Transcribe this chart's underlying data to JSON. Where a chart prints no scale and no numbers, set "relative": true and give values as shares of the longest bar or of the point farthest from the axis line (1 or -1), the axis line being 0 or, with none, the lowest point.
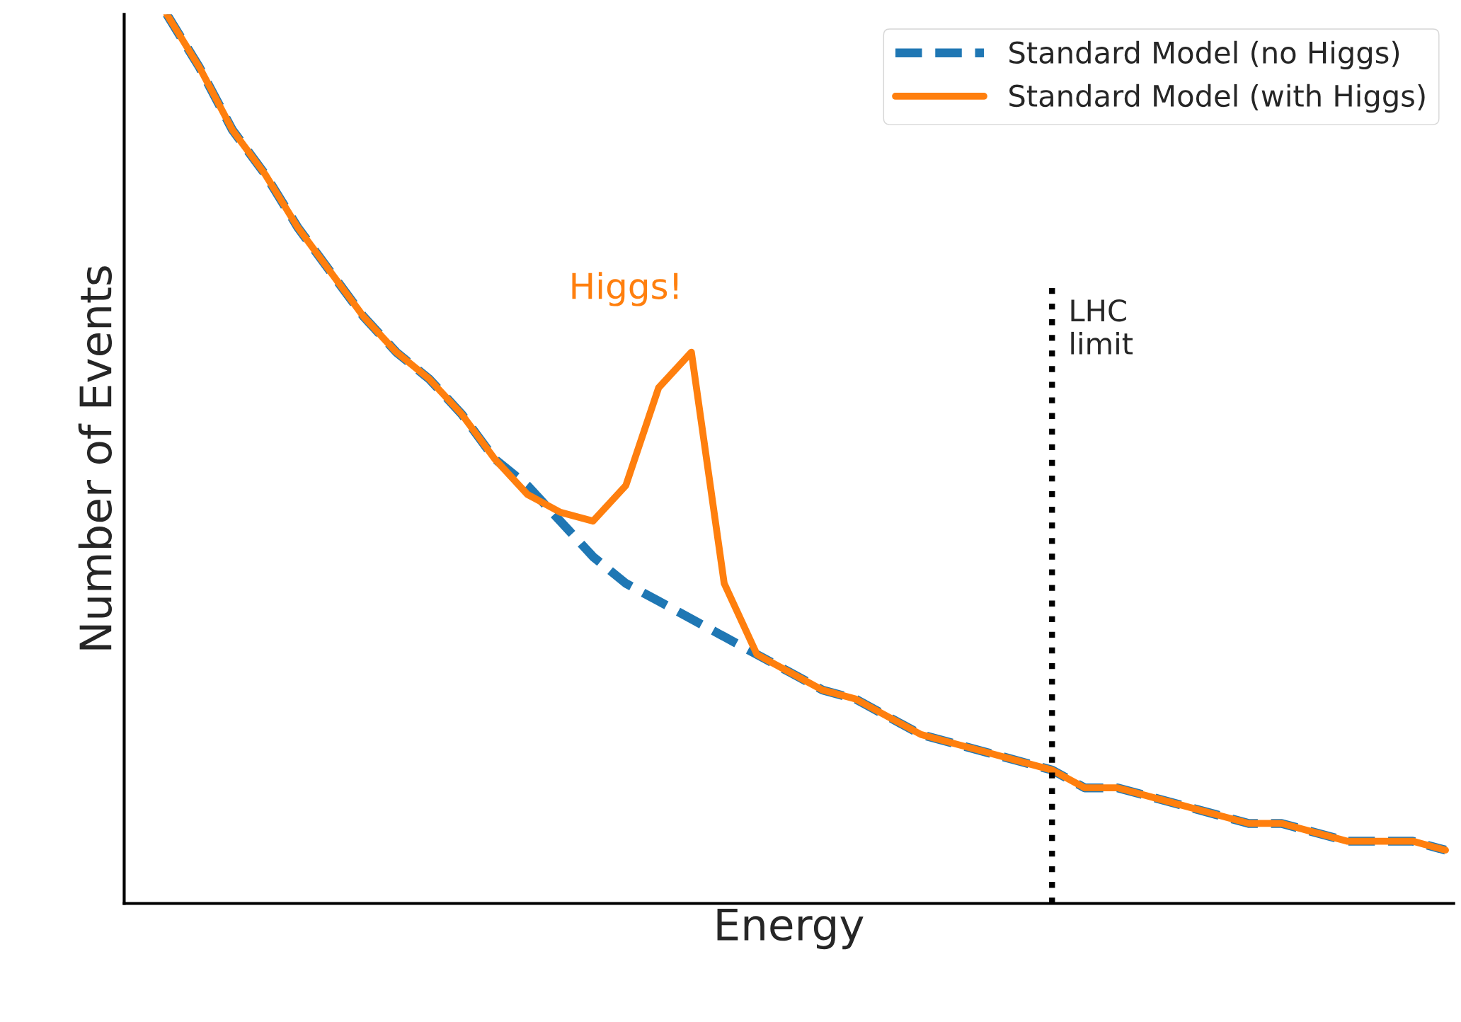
{
  "chart_data": {
    "type": "line",
    "relative": true,
    "xlabel": "Energy",
    "ylabel": "Number of Events",
    "categories": [
      null,
      null,
      null,
      null,
      null,
      null,
      null,
      null,
      null,
      null,
      null,
      null,
      null,
      null,
      null,
      null,
      null,
      null,
      null,
      null,
      null,
      null,
      null,
      null,
      null,
      null,
      null,
      null,
      null,
      null,
      null,
      null,
      null,
      null,
      null,
      null,
      null,
      null,
      null,
      null
    ],
    "series": [
      {
        "name": "Standard Model (no Higgs)",
        "color": "#1f77b4",
        "line_style": "dashed",
        "values": [
          1.0,
          0.94,
          0.87,
          0.82,
          0.76,
          0.71,
          0.66,
          0.62,
          0.59,
          0.55,
          0.5,
          0.47,
          0.43,
          0.39,
          0.36,
          0.34,
          0.32,
          0.3,
          0.28,
          0.26,
          0.24,
          0.23,
          0.21,
          0.19,
          0.18,
          0.17,
          0.16,
          0.15,
          0.13,
          0.13,
          0.12,
          0.11,
          0.1,
          0.09,
          0.09,
          0.08,
          0.07,
          0.07,
          0.07,
          0.06
        ]
      },
      {
        "name": "Standard Model (with Higgs)",
        "color": "#ff7f0e",
        "line_style": "solid",
        "values": [
          1.0,
          0.94,
          0.87,
          0.82,
          0.76,
          0.71,
          0.66,
          0.62,
          0.59,
          0.55,
          0.5,
          0.46,
          0.44,
          0.43,
          0.47,
          0.58,
          0.62,
          0.36,
          0.28,
          0.26,
          0.24,
          0.23,
          0.21,
          0.19,
          0.18,
          0.17,
          0.16,
          0.15,
          0.13,
          0.13,
          0.12,
          0.11,
          0.1,
          0.09,
          0.09,
          0.08,
          0.07,
          0.07,
          0.07,
          0.06
        ]
      }
    ],
    "annotations": [
      "Higgs!",
      "LHC\nlimit"
    ],
    "legend": "top right"
  }
}
